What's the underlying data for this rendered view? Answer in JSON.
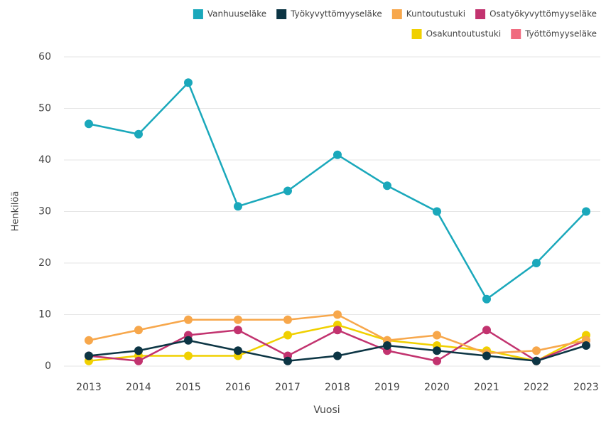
{
  "chart_data": {
    "type": "line",
    "x_label": "Vuosi",
    "y_label": "Henkilöä",
    "categories": [
      "2013",
      "2014",
      "2015",
      "2016",
      "2017",
      "2018",
      "2019",
      "2020",
      "2021",
      "2022",
      "2023"
    ],
    "ylim": [
      0,
      60
    ],
    "yticks": [
      0,
      10,
      20,
      30,
      40,
      50,
      60
    ],
    "grid": true,
    "series": [
      {
        "name": "Vanhuuseläke",
        "color": "#1aa8bb",
        "values": [
          47,
          45,
          55,
          31,
          34,
          41,
          35,
          30,
          13,
          20,
          30
        ]
      },
      {
        "name": "Työkyvyttömyyseläke",
        "color": "#0c3544",
        "values": [
          2,
          3,
          5,
          3,
          1,
          2,
          4,
          3,
          2,
          1,
          4
        ]
      },
      {
        "name": "Kuntoutustuki",
        "color": "#f7a74b",
        "values": [
          5,
          7,
          9,
          9,
          9,
          10,
          5,
          6,
          2.5,
          3,
          5
        ]
      },
      {
        "name": "Osatyökyvyttömyyseläke",
        "color": "#c2336f",
        "values": [
          2,
          1,
          6,
          7,
          2,
          7,
          3,
          1,
          7,
          1,
          5
        ]
      },
      {
        "name": "Osakuntoutustuki",
        "color": "#f0d000",
        "values": [
          1,
          2,
          2,
          2,
          6,
          8,
          5,
          4,
          3,
          1,
          6
        ]
      },
      {
        "name": "Työttömyyseläke",
        "color": "#f06b7f",
        "values": [
          null,
          null,
          null,
          null,
          null,
          null,
          null,
          null,
          null,
          null,
          null
        ]
      }
    ]
  }
}
